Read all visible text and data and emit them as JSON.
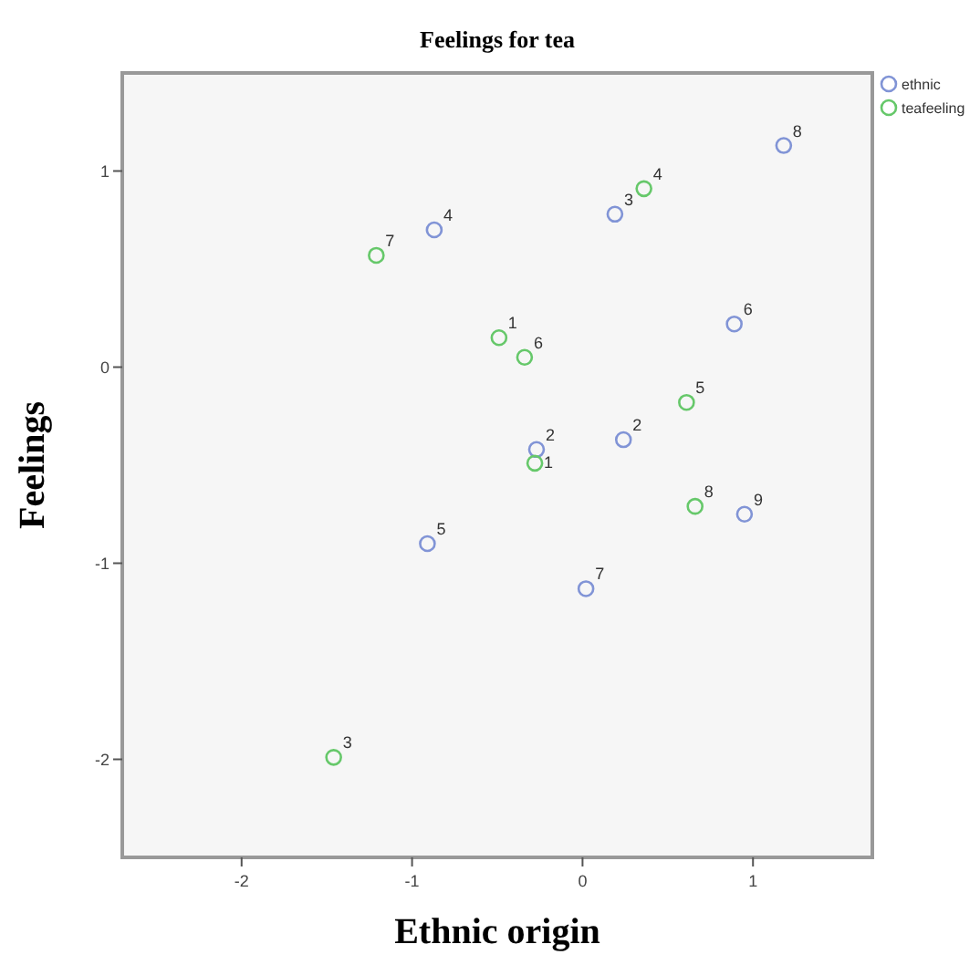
{
  "chart_data": {
    "type": "scatter",
    "title": "Feelings for tea",
    "xlabel": "Ethnic origin",
    "ylabel": "Feelings",
    "xlim": [
      -2.7,
      1.7
    ],
    "ylim": [
      -2.5,
      1.5
    ],
    "xticks": [
      -2,
      -1,
      0,
      1
    ],
    "yticks": [
      -2,
      -1,
      0,
      1
    ],
    "grid": false,
    "legend": "top right",
    "marker": "circle",
    "series": [
      {
        "name": "ethnic",
        "color": "#8194d6",
        "x": [
          -0.87,
          0.19,
          1.18,
          0.89,
          0.24,
          -0.27,
          -0.91,
          0.02,
          0.95
        ],
        "values": [
          0.7,
          0.78,
          1.13,
          0.22,
          -0.37,
          -0.42,
          -0.9,
          -1.13,
          -0.75
        ]
      },
      {
        "name": "teafeeling",
        "color": "#66c86a",
        "x": [
          -1.21,
          -0.49,
          -0.34,
          0.36,
          0.61,
          0.66,
          -1.46,
          -0.28
        ],
        "values": [
          0.57,
          0.15,
          0.05,
          0.91,
          -0.18,
          -0.71,
          -1.99,
          -0.49
        ]
      }
    ],
    "annotations": [
      {
        "text": "4",
        "x": -0.87,
        "y": 0.7
      },
      {
        "text": "3",
        "x": 0.19,
        "y": 0.78
      },
      {
        "text": "8",
        "x": 1.18,
        "y": 1.13
      },
      {
        "text": "6",
        "x": 0.89,
        "y": 0.22
      },
      {
        "text": "2",
        "x": 0.24,
        "y": -0.37
      },
      {
        "text": "2",
        "x": -0.27,
        "y": -0.42
      },
      {
        "text": "5",
        "x": -0.91,
        "y": -0.9
      },
      {
        "text": "7",
        "x": 0.02,
        "y": -1.13
      },
      {
        "text": "9",
        "x": 0.95,
        "y": -0.75
      },
      {
        "text": "7",
        "x": -1.21,
        "y": 0.57
      },
      {
        "text": "1",
        "x": -0.49,
        "y": 0.15
      },
      {
        "text": "6",
        "x": -0.34,
        "y": 0.05
      },
      {
        "text": "4",
        "x": 0.36,
        "y": 0.91
      },
      {
        "text": "5",
        "x": 0.61,
        "y": -0.18
      },
      {
        "text": "8",
        "x": 0.66,
        "y": -0.71
      },
      {
        "text": "3",
        "x": -1.46,
        "y": -1.99
      },
      {
        "text": "1",
        "x": -0.28,
        "y": -0.56
      }
    ]
  }
}
